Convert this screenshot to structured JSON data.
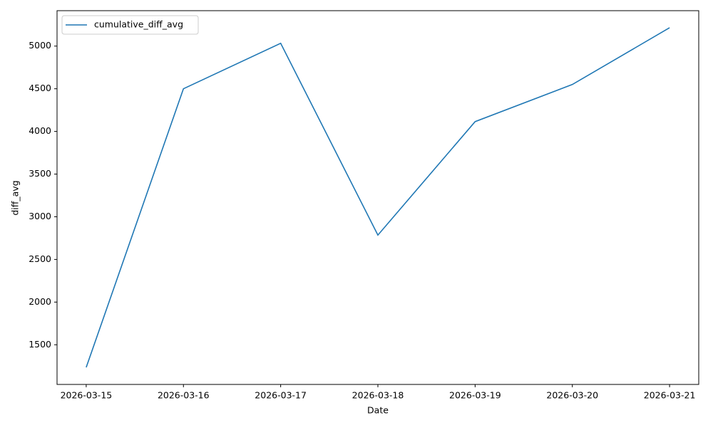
{
  "chart_data": {
    "type": "line",
    "x_label": "Date",
    "y_label": "diff_avg",
    "categories": [
      "2026-03-15",
      "2026-03-16",
      "2026-03-17",
      "2026-03-18",
      "2026-03-19",
      "2026-03-20",
      "2026-03-21"
    ],
    "series": [
      {
        "name": "cumulative_diff_avg",
        "color": "#1f77b4",
        "values": [
          1235,
          4500,
          5033,
          2785,
          4115,
          4550,
          5215
        ]
      }
    ],
    "ylim": [
      1035,
      5415
    ],
    "yticks": [
      1500,
      2000,
      2500,
      3000,
      3500,
      4000,
      4500,
      5000
    ],
    "grid": false,
    "legend": "upper left"
  }
}
